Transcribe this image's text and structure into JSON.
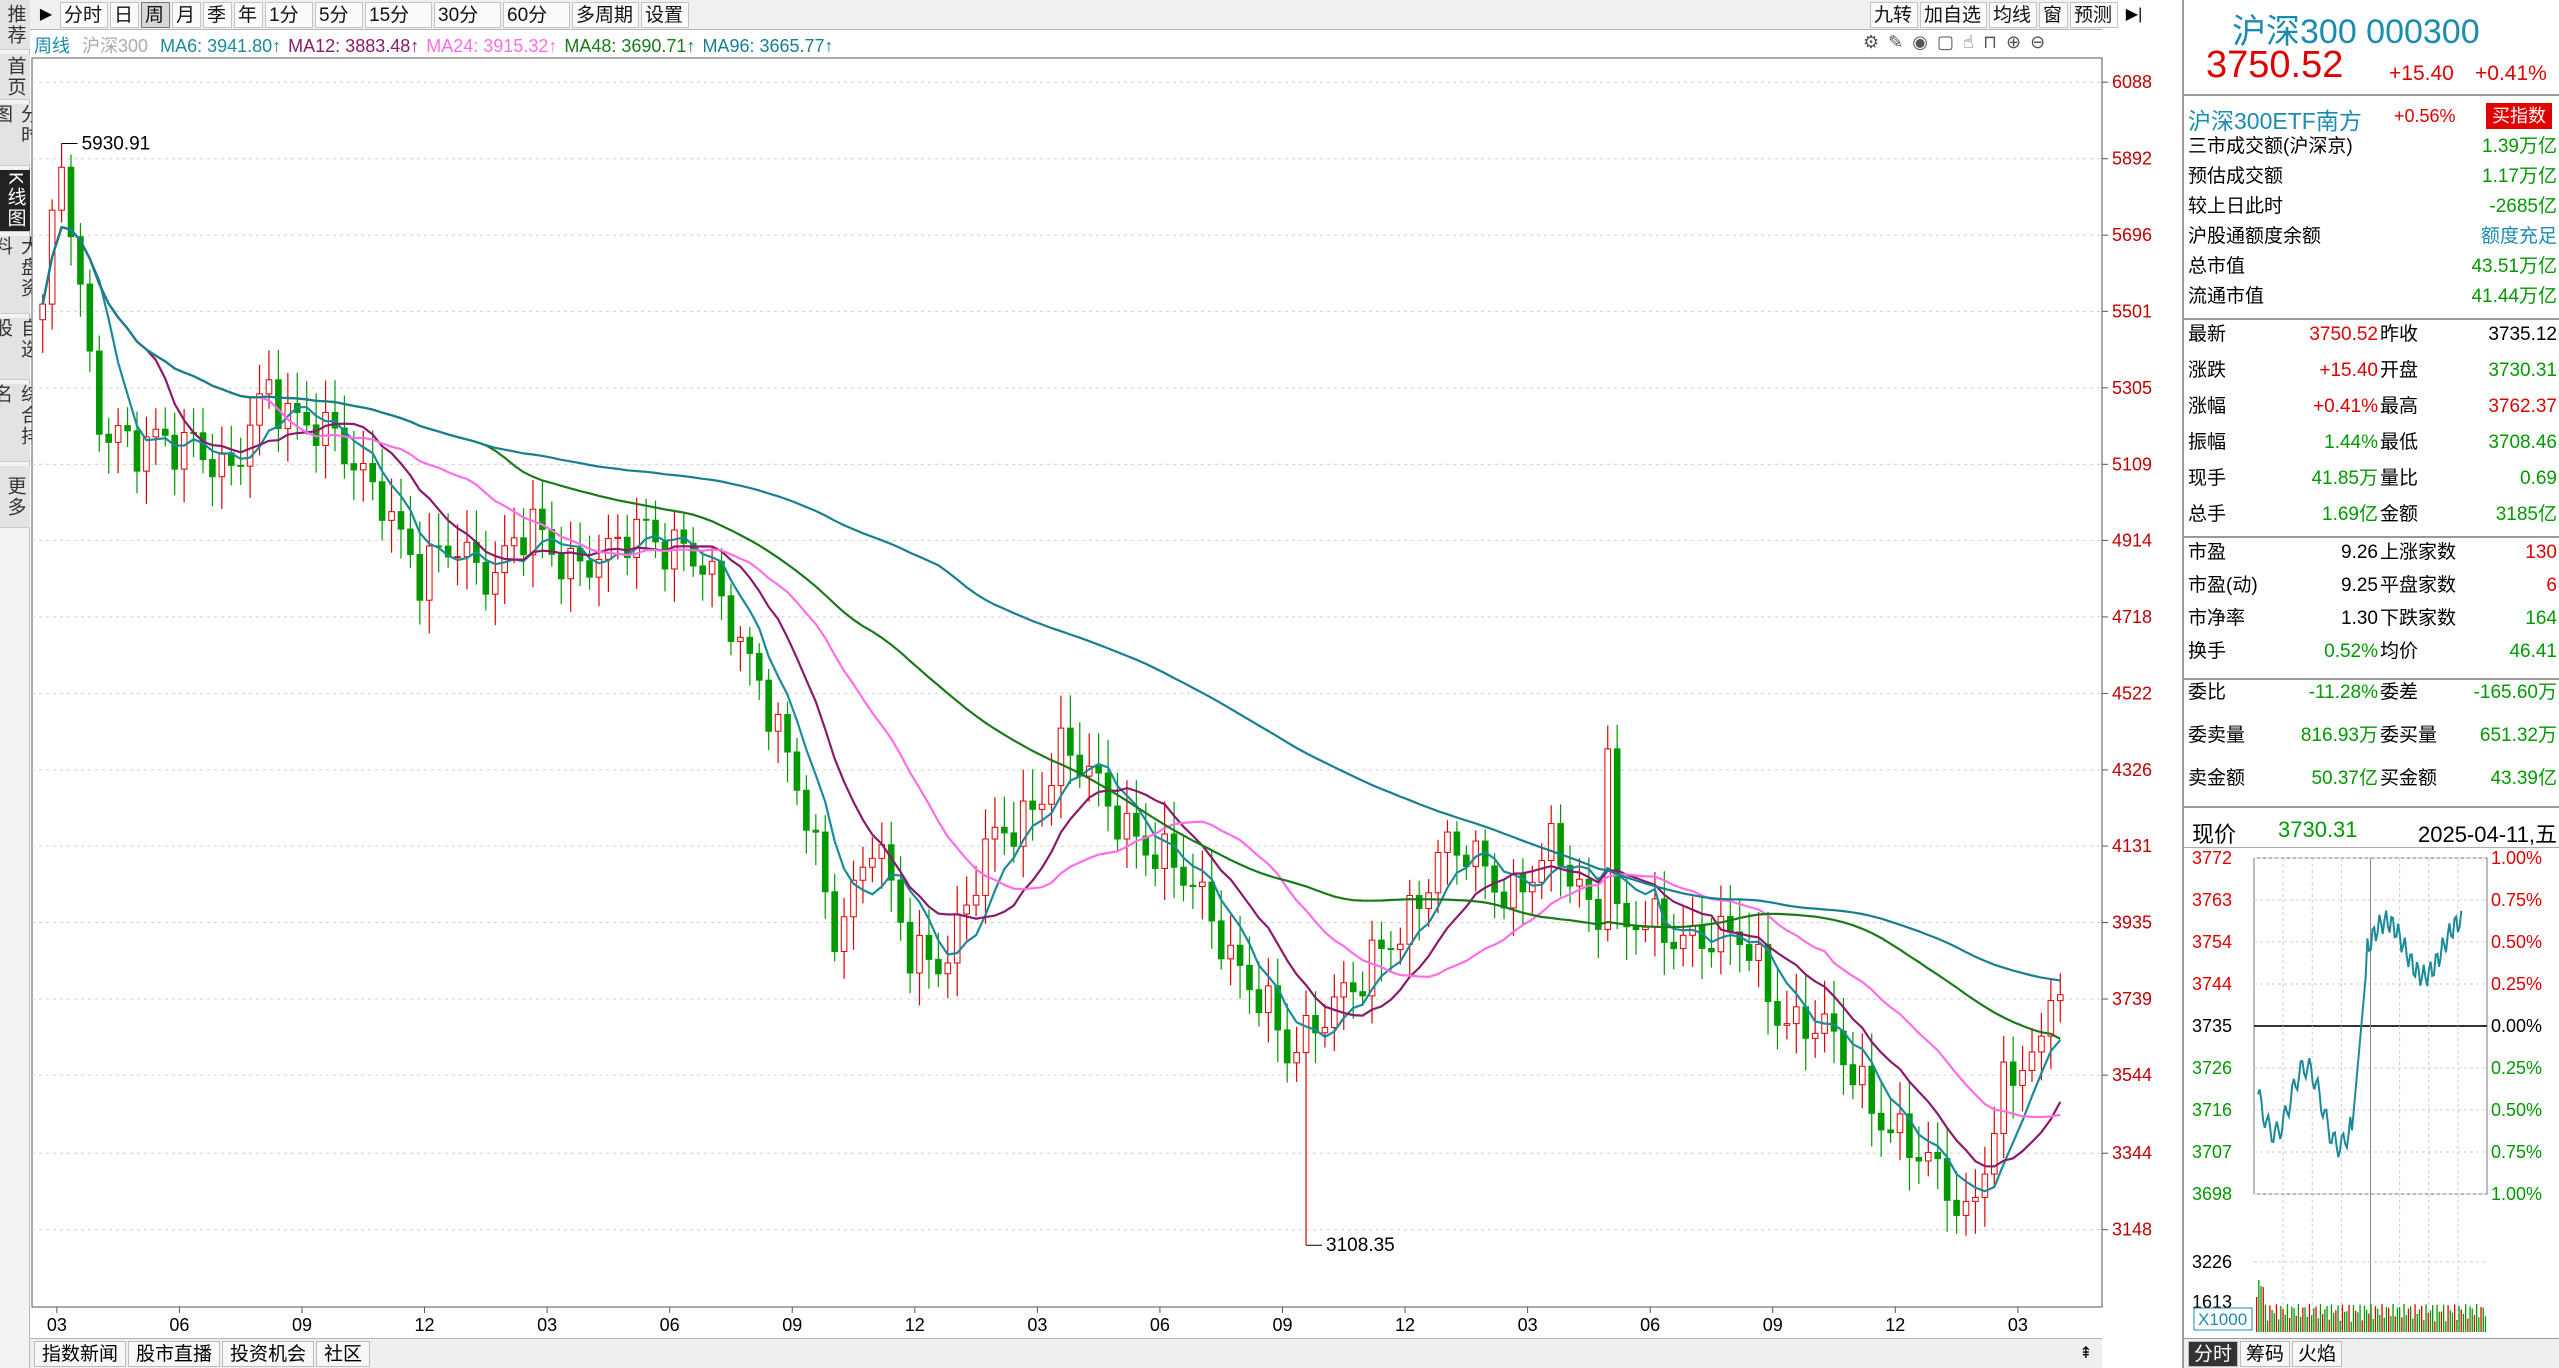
{
  "left_nav": [
    {
      "label": "推荐",
      "name": "nav-recommend"
    },
    {
      "label": "首页",
      "name": "nav-home"
    },
    {
      "label": "分时图",
      "name": "nav-timeshare"
    },
    {
      "label": "K线图",
      "name": "nav-kline",
      "active": true
    },
    {
      "label": "大盘资料",
      "name": "nav-market-info"
    },
    {
      "label": "自选股",
      "name": "nav-watchlist"
    },
    {
      "label": "综合排名",
      "name": "nav-ranking"
    },
    {
      "label": "更多",
      "name": "nav-more"
    }
  ],
  "toolbar": {
    "periods": [
      "分时",
      "日",
      "周",
      "月",
      "季",
      "年",
      "1分",
      "5分",
      "15分",
      "30分",
      "60分",
      "多周期",
      "设置"
    ],
    "active_period": "周",
    "right_buttons": [
      "九转",
      "加自选",
      "均线",
      "窗",
      "预测"
    ]
  },
  "legend": {
    "period": "周线",
    "name": "沪深300",
    "ma": [
      {
        "label": "MA6: 3941.80",
        "color": "#1b8b9a"
      },
      {
        "label": "MA12: 3883.48",
        "color": "#8b1a6b"
      },
      {
        "label": "MA24: 3915.32",
        "color": "#ff6ee6"
      },
      {
        "label": "MA48: 3690.71",
        "color": "#1a7a1a"
      },
      {
        "label": "MA96: 3665.77",
        "color": "#187f8f"
      }
    ],
    "tool_icons": [
      "gear-icon",
      "pen-icon",
      "eye-icon",
      "trash-icon",
      "hand-icon",
      "lock-icon",
      "zoom-in-icon",
      "zoom-out-icon"
    ]
  },
  "chart_data": {
    "type": "candlestick",
    "y_ticks": [
      6088,
      5892,
      5696,
      5501,
      5305,
      5109,
      4914,
      4718,
      4522,
      4326,
      4131,
      3935,
      3739,
      3544,
      3344,
      3148
    ],
    "ylim": [
      2950,
      6150
    ],
    "x_tick_labels": [
      "03",
      "06",
      "09",
      "12",
      "03",
      "06",
      "09",
      "12",
      "03",
      "06",
      "09",
      "12",
      "03",
      "06",
      "09",
      "12",
      "03"
    ],
    "annotations": [
      {
        "label": "5930.91",
        "value": 5930.91
      },
      {
        "label": "3108.35",
        "value": 3108.35
      }
    ],
    "weeks": 215,
    "anchors": [
      [
        0,
        5470
      ],
      [
        2,
        5930
      ],
      [
        4,
        5550
      ],
      [
        6,
        5250
      ],
      [
        10,
        5120
      ],
      [
        16,
        5200
      ],
      [
        20,
        5050
      ],
      [
        24,
        5320
      ],
      [
        28,
        5220
      ],
      [
        32,
        5120
      ],
      [
        36,
        5060
      ],
      [
        40,
        4790
      ],
      [
        44,
        4920
      ],
      [
        48,
        4830
      ],
      [
        52,
        4930
      ],
      [
        56,
        4880
      ],
      [
        60,
        4850
      ],
      [
        64,
        4960
      ],
      [
        68,
        4900
      ],
      [
        72,
        4740
      ],
      [
        76,
        4590
      ],
      [
        80,
        4260
      ],
      [
        84,
        3920
      ],
      [
        88,
        4160
      ],
      [
        92,
        3830
      ],
      [
        96,
        3880
      ],
      [
        100,
        4090
      ],
      [
        104,
        4210
      ],
      [
        108,
        4380
      ],
      [
        112,
        4260
      ],
      [
        116,
        4180
      ],
      [
        120,
        4050
      ],
      [
        124,
        3970
      ],
      [
        128,
        3780
      ],
      [
        132,
        3580
      ],
      [
        136,
        3740
      ],
      [
        140,
        3760
      ],
      [
        144,
        3930
      ],
      [
        148,
        4110
      ],
      [
        152,
        4080
      ],
      [
        156,
        4030
      ],
      [
        160,
        4100
      ],
      [
        164,
        3990
      ],
      [
        168,
        3930
      ],
      [
        172,
        3890
      ],
      [
        176,
        3930
      ],
      [
        180,
        3870
      ],
      [
        184,
        3720
      ],
      [
        188,
        3680
      ],
      [
        192,
        3530
      ],
      [
        196,
        3440
      ],
      [
        200,
        3290
      ],
      [
        204,
        3190
      ],
      [
        208,
        3510
      ],
      [
        212,
        3580
      ]
    ],
    "ma_colors": {
      "ma6": "#1b8b9a",
      "ma12": "#8b1a6b",
      "ma24": "#ff6ee6",
      "ma48": "#1a7a1a",
      "ma96": "#187f8f"
    }
  },
  "bottom_tabs": [
    "指数新闻",
    "股市直播",
    "投资机会",
    "社区"
  ],
  "quote": {
    "title": "沪深300 000300",
    "price": "3750.52",
    "change": "+15.40",
    "pct": "+0.41%",
    "etf_name": "沪深300ETF南方",
    "etf_pct": "+0.56%",
    "etf_button": "买指数",
    "summary": [
      {
        "label": "三市成交额(沪深京)",
        "value": "1.39万亿",
        "color": "green"
      },
      {
        "label": "预估成交额",
        "value": "1.17万亿",
        "color": "green"
      },
      {
        "label": "较上日此时",
        "value": "-2685亿",
        "color": "green"
      },
      {
        "label": "沪股通额度余额",
        "value": "额度充足",
        "color": "teal"
      },
      {
        "label": "总市值",
        "value": "43.51万亿",
        "color": "green"
      },
      {
        "label": "流通市值",
        "value": "41.44万亿",
        "color": "green"
      }
    ],
    "grid1": [
      {
        "l1": "最新",
        "v1": "3750.52",
        "c1": "red",
        "l2": "昨收",
        "v2": "3735.12",
        "c2": "black"
      },
      {
        "l1": "涨跌",
        "v1": "+15.40",
        "c1": "red",
        "l2": "开盘",
        "v2": "3730.31",
        "c2": "green"
      },
      {
        "l1": "涨幅",
        "v1": "+0.41%",
        "c1": "red",
        "l2": "最高",
        "v2": "3762.37",
        "c2": "red"
      },
      {
        "l1": "振幅",
        "v1": "1.44%",
        "c1": "green",
        "l2": "最低",
        "v2": "3708.46",
        "c2": "green"
      },
      {
        "l1": "现手",
        "v1": "41.85万",
        "c1": "green",
        "l2": "量比",
        "v2": "0.69",
        "c2": "green"
      },
      {
        "l1": "总手",
        "v1": "1.69亿",
        "c1": "green",
        "l2": "金额",
        "v2": "3185亿",
        "c2": "green"
      }
    ],
    "grid2": [
      {
        "l1": "市盈",
        "v1": "9.26",
        "c1": "black",
        "l2": "上涨家数",
        "v2": "130",
        "c2": "red"
      },
      {
        "l1": "市盈(动)",
        "v1": "9.25",
        "c1": "black",
        "l2": "平盘家数",
        "v2": "6",
        "c2": "red"
      },
      {
        "l1": "市净率",
        "v1": "1.30",
        "c1": "black",
        "l2": "下跌家数",
        "v2": "164",
        "c2": "green"
      },
      {
        "l1": "换手",
        "v1": "0.52%",
        "c1": "green",
        "l2": "均价",
        "v2": "46.41",
        "c2": "green"
      }
    ],
    "grid3": [
      {
        "l1": "委比",
        "v1": "-11.28%",
        "c1": "green",
        "l2": "委差",
        "v2": "-165.60万",
        "c2": "green"
      },
      {
        "l1": "委卖量",
        "v1": "816.93万",
        "c1": "green",
        "l2": "委买量",
        "v2": "651.32万",
        "c2": "green"
      },
      {
        "l1": "卖金额",
        "v1": "50.37亿",
        "c1": "green",
        "l2": "买金额",
        "v2": "43.39亿",
        "c2": "green"
      }
    ],
    "intraday": {
      "label": "现价",
      "price": "3730.31",
      "date": "2025-04-11,五",
      "left_ticks": [
        "3772",
        "3763",
        "3754",
        "3744",
        "3735",
        "3726",
        "3716",
        "3707",
        "3698"
      ],
      "right_ticks": [
        "1.00%",
        "0.75%",
        "0.50%",
        "0.25%",
        "0.00%",
        "0.25%",
        "0.50%",
        "0.75%",
        "1.00%"
      ],
      "vol_ticks": [
        "3226",
        "1613"
      ],
      "vol_unit": "X1000"
    },
    "tabs": [
      "分时",
      "筹码",
      "火焰"
    ]
  }
}
